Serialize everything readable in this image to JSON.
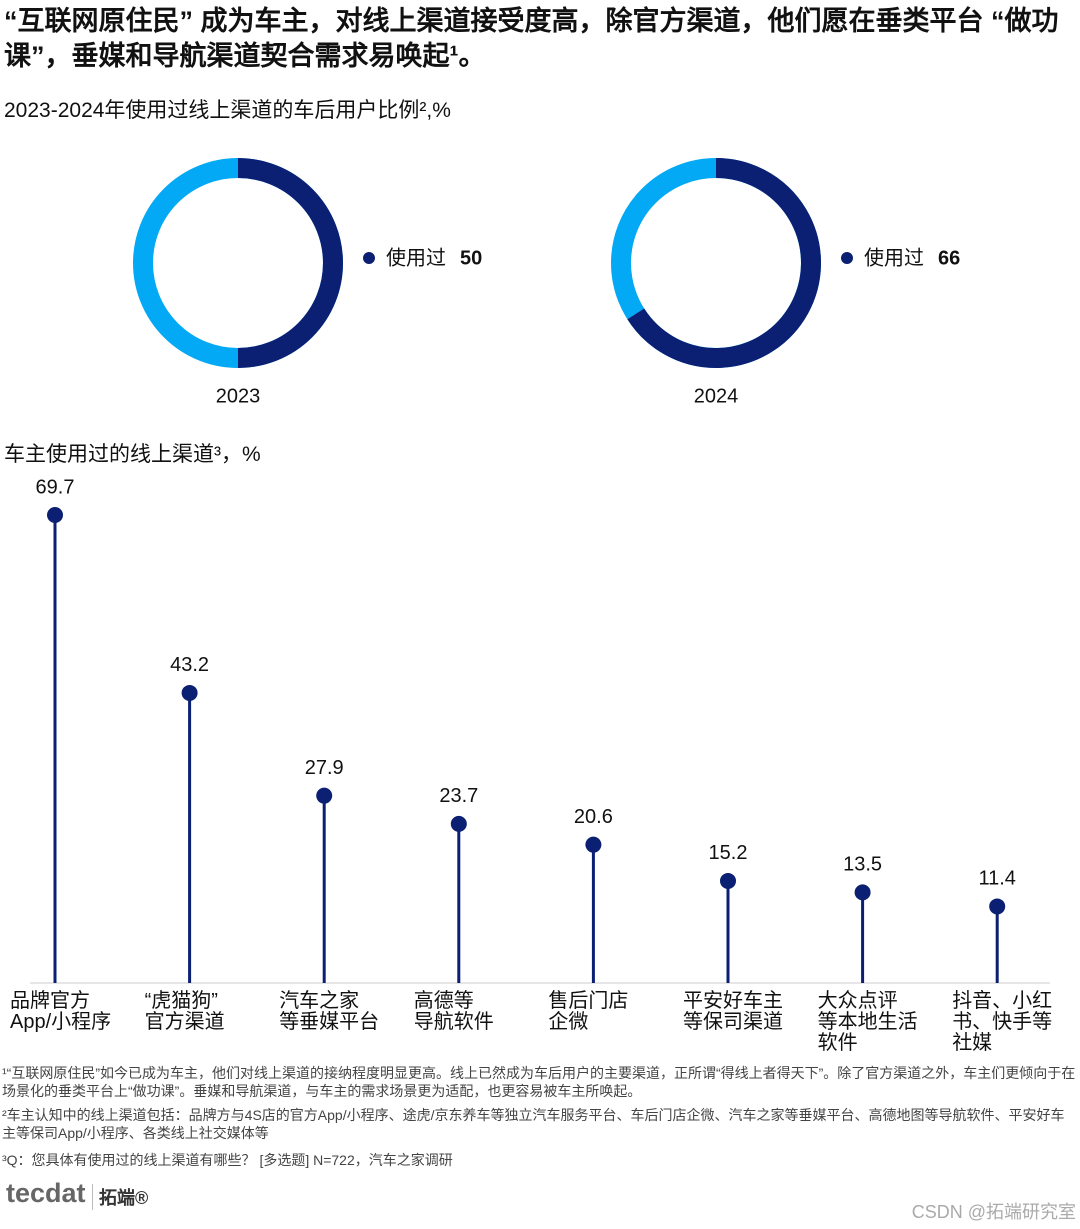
{
  "title": "“互联网原住民” 成为车主，对线上渠道接受度高，除官方渠道，他们愿在垂类平台 “做功课”，垂媒和导航渠道契合需求易唤起¹。",
  "subtitle": "2023-2024年使用过线上渠道的车后用户比例²,%",
  "chart_data": [
    {
      "type": "pie",
      "title": "2023",
      "categories": [
        "使用过"
      ],
      "values": [
        50
      ],
      "color": "#0b1f73",
      "track_color": "#03a9f4"
    },
    {
      "type": "pie",
      "title": "2024",
      "categories": [
        "使用过"
      ],
      "values": [
        66
      ],
      "color": "#0b1f73",
      "track_color": "#03a9f4"
    },
    {
      "type": "lollipop",
      "title": "车主使用过的线上渠道³，%",
      "categories": [
        "品牌官方\nApp/小程序",
        "“虎猫狗”\n官方渠道",
        "汽车之家\n等垂媒平台",
        "高德等\n导航软件",
        "售后门店\n企微",
        "平安好车主\n等保司渠道",
        "大众点评\n等本地生活\n软件",
        "抖音、小红\n书、快手等\n社媒"
      ],
      "values": [
        69.7,
        43.2,
        27.9,
        23.7,
        20.6,
        15.2,
        13.5,
        11.4
      ],
      "color": "#0b1f73",
      "ylim": [
        0,
        70
      ]
    }
  ],
  "notes": [
    "¹“互联网原住民”如今已成为车主，他们对线上渠道的接纳程度明显更高。线上已然成为车后用户的主要渠道，正所谓“得线上者得天下”。除了官方渠道之外，车主们更倾向于在场景化的垂类平台上“做功课”。垂媒和导航渠道，与车主的需求场景更为适配，也更容易被车主所唤起。",
    "²车主认知中的线上渠道包括：品牌方与4S店的官方App/小程序、途虎/京东养车等独立汽车服务平台、车后门店企微、汽车之家等垂媒平台、高德地图等导航软件、平安好车主等保司App/小程序、各类线上社交媒体等",
    "³Q：您具体有使用过的线上渠道有哪些？ [多选题] N=722，汽车之家调研"
  ],
  "logo": {
    "mark": "tecdat",
    "brand": "拓端®"
  },
  "watermark": "CSDN @拓端研究室"
}
